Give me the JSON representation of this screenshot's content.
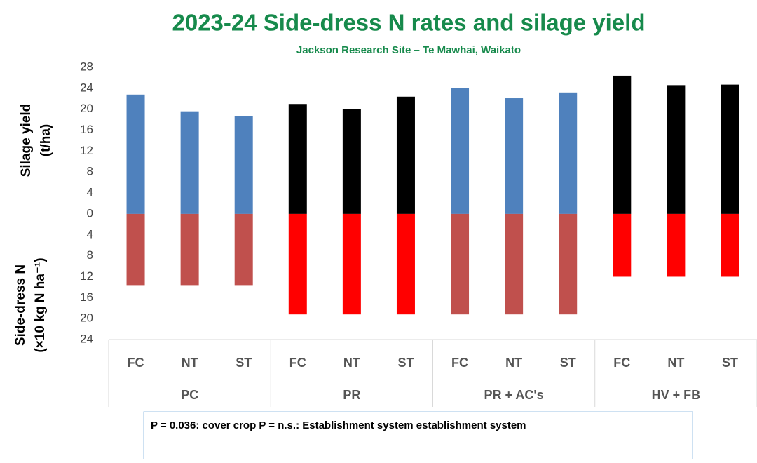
{
  "chart_data": {
    "type": "diverging_bar",
    "title": "2023-24 Side-dress N rates and silage yield",
    "subtitle": "Jackson Research Site – Te Mawhai, Waikato",
    "ylabel_upper": [
      "Silage yield",
      "(t/ha)"
    ],
    "ylabel_lower": [
      "Side-dress N",
      "(×10 kg N ha⁻¹)"
    ],
    "categories": [
      "FC",
      "NT",
      "ST",
      "FC",
      "NT",
      "ST",
      "FC",
      "NT",
      "ST",
      "FC",
      "NT",
      "ST"
    ],
    "groups": [
      "PC",
      "PR",
      "PR + AC's",
      "HV + FB"
    ],
    "series": [
      {
        "colors": [
          "#4f81bd",
          "#4f81bd",
          "#4f81bd",
          "#000000",
          "#000000",
          "#000000",
          "#4f81bd",
          "#4f81bd",
          "#4f81bd",
          "#000000",
          "#000000",
          "#000000"
        ],
        "values": [
          22.8,
          19.6,
          18.7,
          21,
          20,
          22.4,
          24,
          22.1,
          23.2,
          26.4,
          24.6,
          24.7
        ]
      },
      {
        "colors": [
          "#c0504d",
          "#c0504d",
          "#c0504d",
          "#ff0000",
          "#ff0000",
          "#ff0000",
          "#c0504d",
          "#c0504d",
          "#c0504d",
          "#ff0000",
          "#ff0000",
          "#ff0000"
        ],
        "values": [
          -13.6,
          -13.6,
          -13.6,
          -19.2,
          -19.2,
          -19.2,
          -19.2,
          -19.2,
          -19.2,
          -12,
          -12,
          -12
        ]
      }
    ],
    "ylim": [
      -24,
      28
    ],
    "yticks": [
      28,
      24,
      20,
      16,
      12,
      8,
      4,
      0,
      {
        "value": -4,
        "label": "4"
      },
      {
        "value": -8,
        "label": "8"
      },
      {
        "value": -12,
        "label": "12"
      },
      {
        "value": -16,
        "label": "16"
      },
      {
        "value": -20,
        "label": "20"
      },
      {
        "value": -24,
        "label": "24"
      }
    ],
    "grid": false,
    "note": "P = 0.036: cover crop   P = n.s.:  Establishment system establishment system"
  }
}
